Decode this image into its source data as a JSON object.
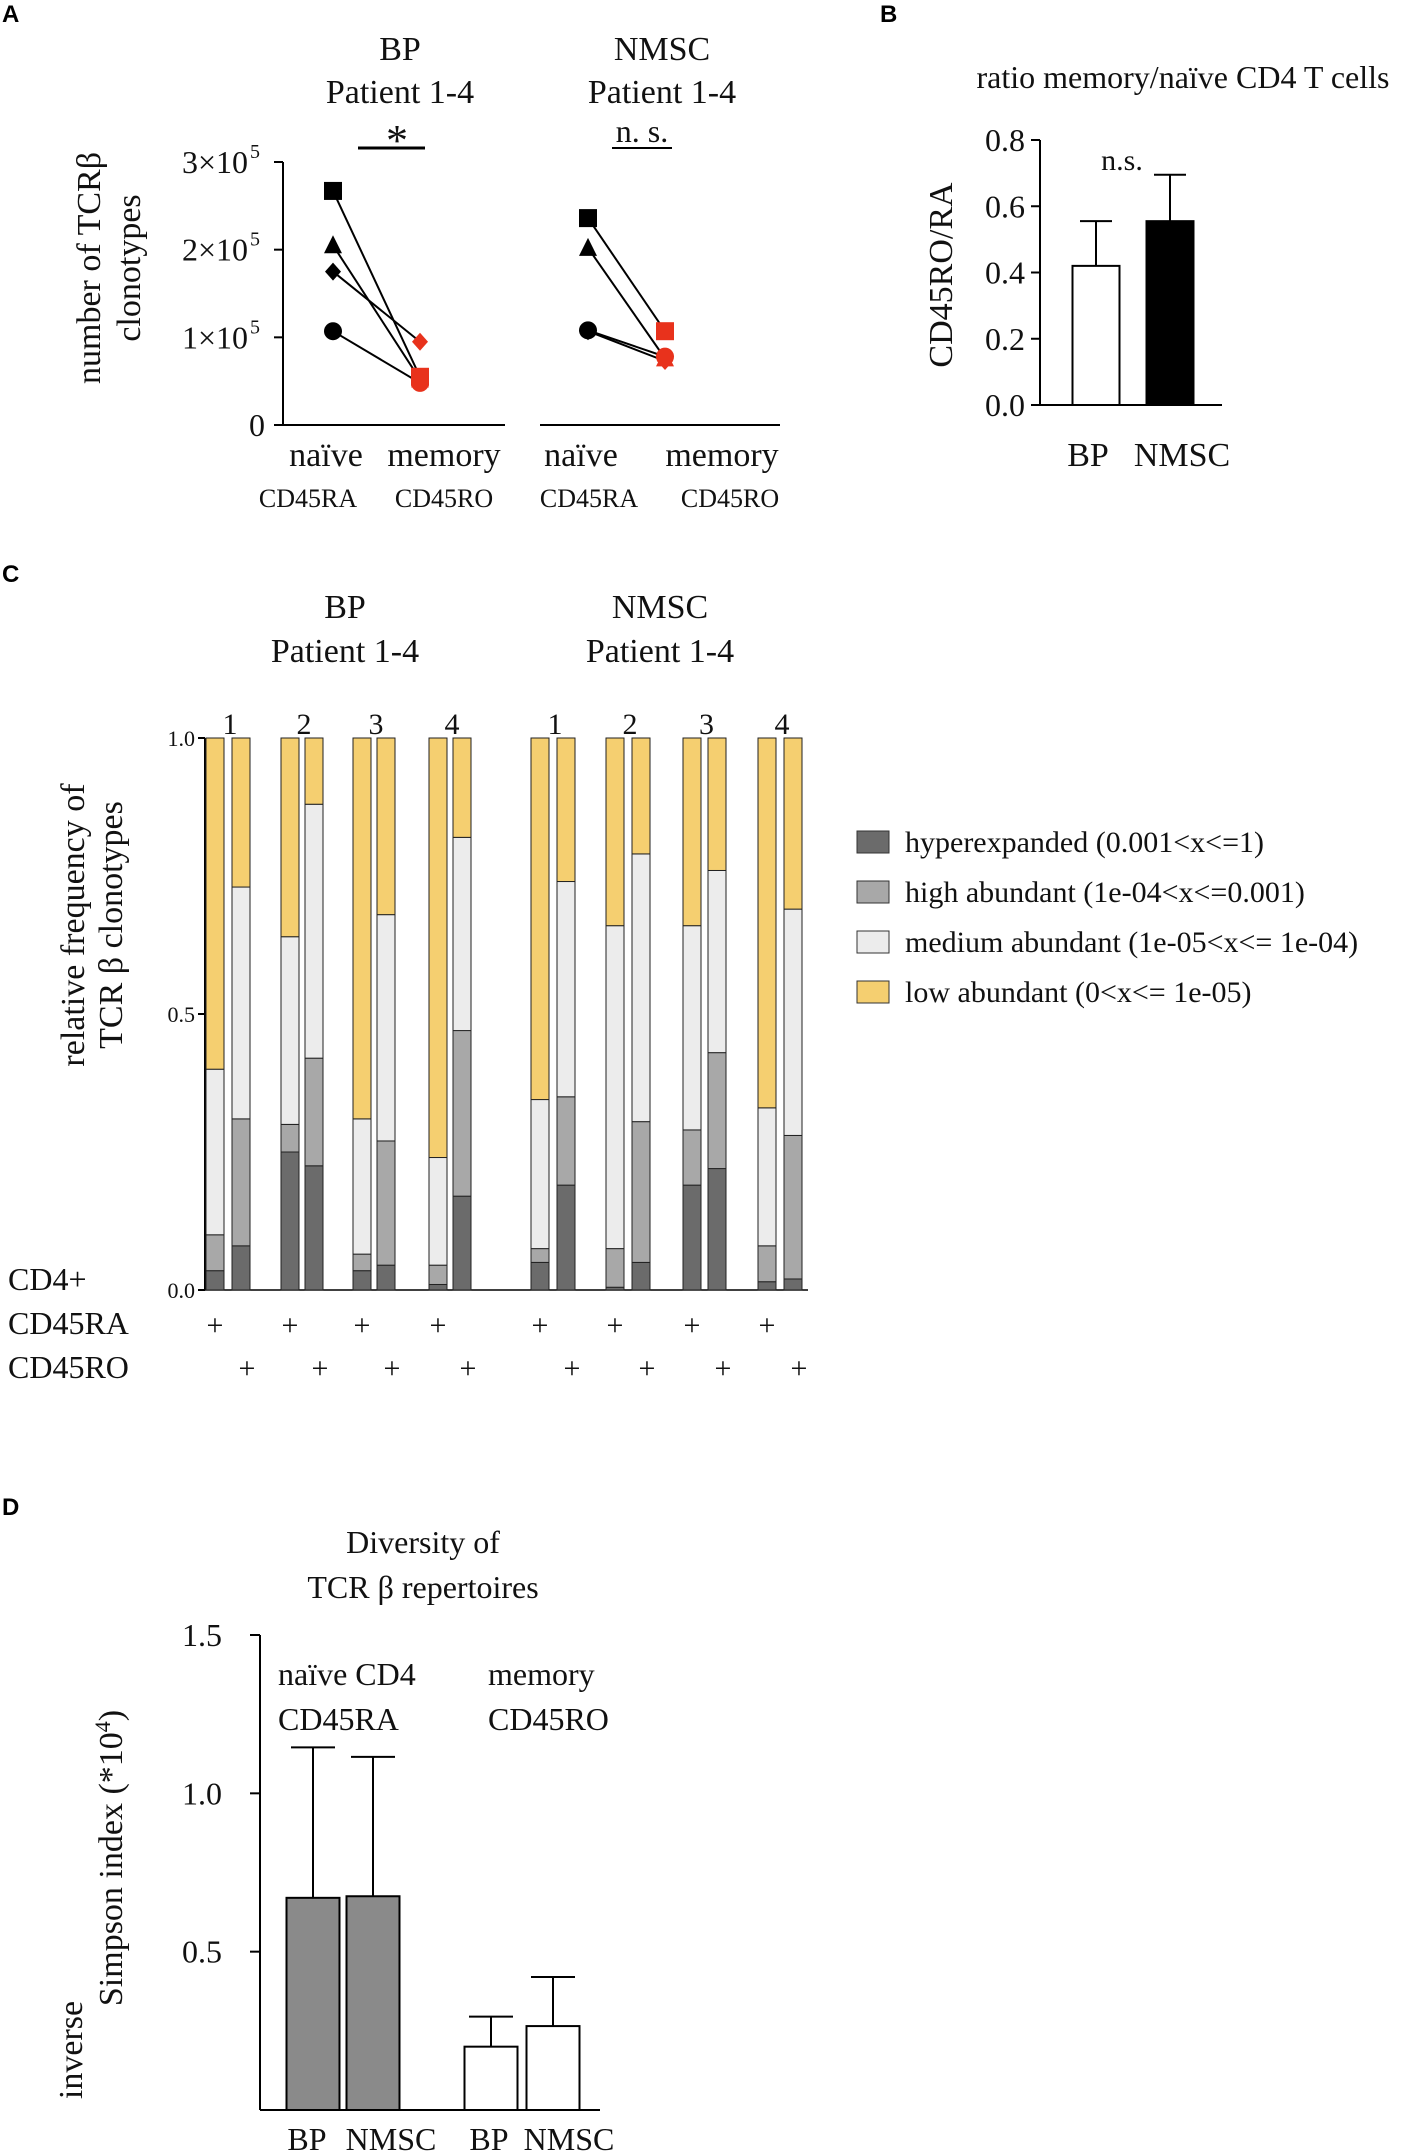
{
  "chart_data": [
    {
      "panel": "A",
      "type": "scatter",
      "ylabel_line1": "number of TCRβ",
      "ylabel_line2": "clonotypes",
      "ytick_labels": [
        "0",
        "1×10",
        "2×10",
        "3×10"
      ],
      "ytick_exp": "5",
      "ylim": [
        0,
        300000
      ],
      "groups": [
        {
          "title1": "BP",
          "title2": "Patient 1-4",
          "significance": "*",
          "x_label_naive": "naïve",
          "x_sub_naive": "CD45RA",
          "x_label_memory": "memory",
          "x_sub_memory": "CD45RO",
          "pairs": [
            {
              "patient": 1,
              "naive": 267000,
              "memory": 55000,
              "marker": "square"
            },
            {
              "patient": 2,
              "naive": 205000,
              "memory": 52000,
              "marker": "triangle"
            },
            {
              "patient": 3,
              "naive": 175000,
              "memory": 95000,
              "marker": "diamond"
            },
            {
              "patient": 4,
              "naive": 107000,
              "memory": 48000,
              "marker": "circle"
            }
          ]
        },
        {
          "title1": "NMSC",
          "title2": "Patient 1-4",
          "significance": "n. s.",
          "x_label_naive": "naïve",
          "x_sub_naive": "CD45RA",
          "x_label_memory": "memory",
          "x_sub_memory": "CD45RO",
          "pairs": [
            {
              "patient": 1,
              "naive": 236000,
              "memory": 107000,
              "marker": "square"
            },
            {
              "patient": 2,
              "naive": 202000,
              "memory": 76000,
              "marker": "triangle"
            },
            {
              "patient": 3,
              "naive": 107000,
              "memory": 73000,
              "marker": "diamond"
            },
            {
              "patient": 4,
              "naive": 108000,
              "memory": 78000,
              "marker": "circle"
            }
          ]
        }
      ]
    },
    {
      "panel": "B",
      "type": "bar",
      "title": "ratio memory/naïve CD4 T cells",
      "ylabel": "CD45RO/RA",
      "categories": [
        "BP",
        "NMSC"
      ],
      "values": [
        0.42,
        0.555
      ],
      "errors": [
        0.135,
        0.14
      ],
      "colors": [
        "#ffffff",
        "#000000"
      ],
      "ytick_labels": [
        "0.0",
        "0.2",
        "0.4",
        "0.6",
        "0.8"
      ],
      "ylim": [
        0,
        0.8
      ],
      "significance": "n.s."
    },
    {
      "panel": "C",
      "type": "bar",
      "stacked": true,
      "ylabel_line1": "relative frequency of",
      "ylabel_line2": "TCR β clonotypes",
      "ytick_labels": [
        "0.0",
        "0.5",
        "1.0"
      ],
      "ylim": [
        0,
        1
      ],
      "groups": [
        {
          "title1": "BP",
          "title2": "Patient 1-4"
        },
        {
          "title1": "NMSC",
          "title2": "Patient 1-4"
        }
      ],
      "row_labels": {
        "cd4": "CD4+",
        "ra": "CD45RA",
        "ro": "CD45RO"
      },
      "plus": "+",
      "series": [
        {
          "name": "hyperexpanded (0.001<x<=1)",
          "color": "#6b6b6b"
        },
        {
          "name": "high abundant (1e-04<x<=0.001)",
          "color": "#a8a8a8"
        },
        {
          "name": "medium abundant (1e-05<x<= 1e-04)",
          "color": "#ececec"
        },
        {
          "name": "low abundant (0<x<= 1e-05)",
          "color": "#f5cf70"
        }
      ],
      "bars": [
        {
          "group": 0,
          "patient": "1",
          "subset": "RA",
          "cum": [
            0.035,
            0.1,
            0.4,
            1.0
          ]
        },
        {
          "group": 0,
          "patient": "1",
          "subset": "RO",
          "cum": [
            0.08,
            0.31,
            0.73,
            1.0
          ]
        },
        {
          "group": 0,
          "patient": "2",
          "subset": "RA",
          "cum": [
            0.25,
            0.3,
            0.64,
            1.0
          ]
        },
        {
          "group": 0,
          "patient": "2",
          "subset": "RO",
          "cum": [
            0.225,
            0.42,
            0.88,
            1.0
          ]
        },
        {
          "group": 0,
          "patient": "3",
          "subset": "RA",
          "cum": [
            0.035,
            0.065,
            0.31,
            1.0
          ]
        },
        {
          "group": 0,
          "patient": "3",
          "subset": "RO",
          "cum": [
            0.045,
            0.27,
            0.68,
            1.0
          ]
        },
        {
          "group": 0,
          "patient": "4",
          "subset": "RA",
          "cum": [
            0.01,
            0.045,
            0.24,
            1.0
          ]
        },
        {
          "group": 0,
          "patient": "4",
          "subset": "RO",
          "cum": [
            0.17,
            0.47,
            0.82,
            1.0
          ]
        },
        {
          "group": 1,
          "patient": "1",
          "subset": "RA",
          "cum": [
            0.05,
            0.075,
            0.345,
            1.0
          ]
        },
        {
          "group": 1,
          "patient": "1",
          "subset": "RO",
          "cum": [
            0.19,
            0.35,
            0.74,
            1.0
          ]
        },
        {
          "group": 1,
          "patient": "2",
          "subset": "RA",
          "cum": [
            0.005,
            0.075,
            0.66,
            1.0
          ]
        },
        {
          "group": 1,
          "patient": "2",
          "subset": "RO",
          "cum": [
            0.05,
            0.305,
            0.79,
            1.0
          ]
        },
        {
          "group": 1,
          "patient": "3",
          "subset": "RA",
          "cum": [
            0.19,
            0.29,
            0.66,
            1.0
          ]
        },
        {
          "group": 1,
          "patient": "3",
          "subset": "RO",
          "cum": [
            0.22,
            0.43,
            0.76,
            1.0
          ]
        },
        {
          "group": 1,
          "patient": "4",
          "subset": "RA",
          "cum": [
            0.015,
            0.08,
            0.33,
            1.0
          ]
        },
        {
          "group": 1,
          "patient": "4",
          "subset": "RO",
          "cum": [
            0.02,
            0.28,
            0.69,
            1.0
          ]
        }
      ]
    },
    {
      "panel": "D",
      "type": "bar",
      "title1": "Diversity of",
      "title2": "TCR β repertoires",
      "ylabel_line1": "inverse",
      "ylabel_line2": "Simpson index (*10",
      "ylabel_exp": "4",
      "ylabel_close": ")",
      "ytick_labels": [
        "0.5",
        "1.0",
        "1.5"
      ],
      "ylim": [
        0,
        1.5
      ],
      "group_labels": [
        {
          "line1": "naïve CD4",
          "line2": "CD45RA"
        },
        {
          "line1": "memory",
          "line2": "CD45RO"
        }
      ],
      "categories": [
        "BP",
        "NMSC",
        "BP",
        "NMSC"
      ],
      "values": [
        0.67,
        0.675,
        0.2,
        0.265
      ],
      "errors": [
        0.475,
        0.44,
        0.095,
        0.155
      ],
      "colors": [
        "#8a8a8a",
        "#8a8a8a",
        "#ffffff",
        "#ffffff"
      ]
    }
  ],
  "panel_letters": [
    "A",
    "B",
    "C",
    "D"
  ]
}
